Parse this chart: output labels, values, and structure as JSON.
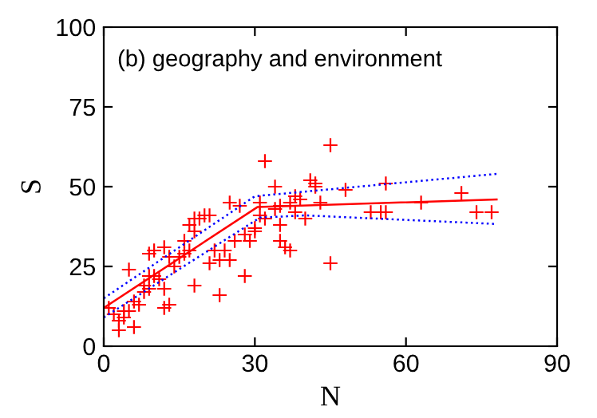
{
  "chart_data": {
    "type": "scatter",
    "xlabel": "N",
    "ylabel": "S",
    "annotations": [
      "(b) geography and environment"
    ],
    "xlim": [
      0,
      90
    ],
    "ylim": [
      0,
      100
    ],
    "xticks": [
      0,
      30,
      60,
      90
    ],
    "yticks": [
      0,
      25,
      50,
      75,
      100
    ],
    "grid": false,
    "legend": false,
    "series": [
      {
        "color": "#ff0000",
        "marker": "cross",
        "x": [
          1,
          2,
          3,
          3,
          4,
          4,
          5,
          6,
          5,
          6,
          7,
          8,
          8,
          9,
          9,
          9,
          10,
          10,
          11,
          12,
          12,
          13,
          12,
          13,
          14,
          15,
          16,
          17,
          16,
          17,
          18,
          18,
          18,
          19,
          20,
          21,
          21,
          22,
          23,
          23,
          24,
          25,
          25,
          26,
          27,
          28,
          28,
          29,
          30,
          30,
          31,
          31,
          32,
          32,
          34,
          34,
          35,
          35,
          35,
          36,
          37,
          37,
          38,
          38,
          39,
          40,
          41,
          42,
          43,
          42,
          45,
          45,
          48,
          53,
          55,
          56,
          56,
          63,
          71,
          74,
          77
        ],
        "values": [
          12,
          10,
          5,
          8,
          9,
          11,
          11,
          6,
          24,
          14,
          13,
          17,
          19,
          18,
          22,
          29,
          30,
          22,
          21,
          18,
          12,
          13,
          31,
          28,
          25,
          28,
          29,
          30,
          33,
          38,
          40,
          36,
          19,
          40,
          41,
          41,
          26,
          30,
          16,
          27,
          30,
          27,
          45,
          33,
          44,
          35,
          22,
          33,
          36,
          37,
          41,
          45,
          40,
          58,
          50,
          43,
          44,
          38,
          33,
          31,
          30,
          45,
          47,
          42,
          46,
          40,
          52,
          51,
          45,
          50,
          26,
          63,
          49,
          42,
          42,
          42,
          51,
          45,
          48,
          42,
          42
        ]
      },
      {
        "type": "line",
        "color": "#ff0000",
        "line_style": "solid",
        "marker": "none",
        "x": [
          0,
          30.5,
          78
        ],
        "values": [
          12,
          43.6,
          46
        ]
      },
      {
        "type": "line",
        "color": "#0000ff",
        "line_style": "dotted",
        "marker": "none",
        "x": [
          0,
          30,
          78
        ],
        "values": [
          15,
          47,
          54
        ]
      },
      {
        "type": "line",
        "color": "#0000ff",
        "line_style": "dotted",
        "marker": "none",
        "x": [
          0,
          31,
          40,
          78
        ],
        "values": [
          9,
          40.3,
          41,
          38.3
        ]
      }
    ]
  }
}
